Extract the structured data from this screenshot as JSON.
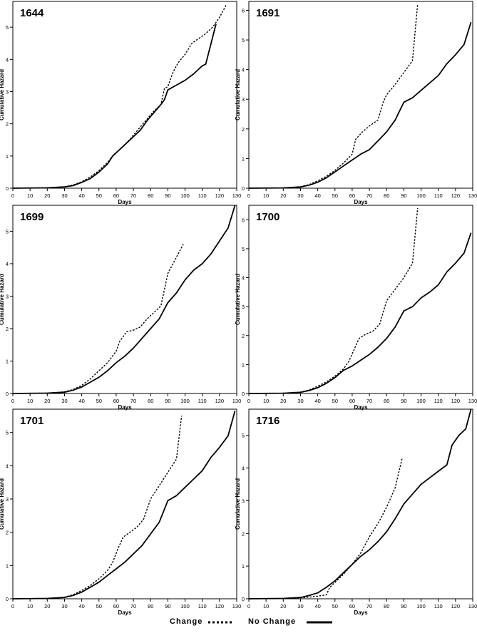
{
  "colors": {
    "line": "#000000",
    "background": "#ffffff"
  },
  "legend": {
    "dashed_label": "Change",
    "solid_label": "No Change"
  },
  "chart_data": [
    {
      "type": "line",
      "title": "1644",
      "xlabel": "Days",
      "ylabel": "Cumulative Hazard",
      "xlim": [
        0,
        130
      ],
      "ylim": [
        0,
        5.8
      ],
      "xticks": [
        0,
        10,
        20,
        30,
        40,
        50,
        60,
        70,
        80,
        90,
        100,
        110,
        120,
        130
      ],
      "yticks": [
        0,
        1,
        2,
        3,
        4,
        5
      ],
      "grid": false,
      "series": [
        {
          "name": "No Change",
          "style": "solid",
          "x": [
            0,
            20,
            30,
            35,
            40,
            45,
            50,
            55,
            58,
            62,
            66,
            70,
            74,
            78,
            82,
            86,
            88,
            90,
            95,
            100,
            105,
            110,
            112,
            118
          ],
          "y": [
            0,
            0.01,
            0.04,
            0.08,
            0.18,
            0.3,
            0.5,
            0.75,
            1.0,
            1.2,
            1.4,
            1.6,
            1.8,
            2.1,
            2.35,
            2.6,
            2.75,
            3.05,
            3.2,
            3.35,
            3.55,
            3.8,
            3.85,
            5.1
          ]
        },
        {
          "name": "Change",
          "style": "dashed",
          "x": [
            0,
            20,
            30,
            35,
            40,
            45,
            50,
            55,
            58,
            62,
            66,
            70,
            74,
            78,
            82,
            86,
            88,
            90,
            93,
            96,
            100,
            104,
            108,
            112,
            116,
            120,
            124
          ],
          "y": [
            0,
            0.01,
            0.04,
            0.1,
            0.2,
            0.35,
            0.55,
            0.8,
            1.0,
            1.2,
            1.4,
            1.65,
            1.9,
            2.15,
            2.4,
            2.6,
            3.1,
            3.15,
            3.6,
            3.9,
            4.15,
            4.5,
            4.65,
            4.8,
            5.0,
            5.3,
            5.7
          ]
        }
      ]
    },
    {
      "type": "line",
      "title": "1691",
      "xlabel": "Days",
      "ylabel": "Cumulative Hazard",
      "xlim": [
        0,
        130
      ],
      "ylim": [
        0,
        6.3
      ],
      "xticks": [
        0,
        10,
        20,
        30,
        40,
        50,
        60,
        70,
        80,
        90,
        100,
        110,
        120,
        130
      ],
      "yticks": [
        0,
        1,
        2,
        3,
        4,
        5,
        6
      ],
      "grid": false,
      "series": [
        {
          "name": "No Change",
          "style": "solid",
          "x": [
            0,
            20,
            30,
            35,
            40,
            45,
            50,
            55,
            60,
            65,
            70,
            75,
            80,
            85,
            90,
            95,
            100,
            105,
            110,
            115,
            120,
            125,
            129
          ],
          "y": [
            0,
            0.01,
            0.04,
            0.1,
            0.2,
            0.35,
            0.55,
            0.75,
            0.95,
            1.15,
            1.3,
            1.6,
            1.9,
            2.3,
            2.9,
            3.05,
            3.3,
            3.55,
            3.8,
            4.2,
            4.5,
            4.85,
            5.6
          ]
        },
        {
          "name": "Change",
          "style": "dashed",
          "x": [
            0,
            20,
            30,
            35,
            40,
            45,
            50,
            55,
            60,
            62,
            66,
            70,
            75,
            78,
            80,
            85,
            90,
            95,
            98
          ],
          "y": [
            0,
            0.01,
            0.05,
            0.12,
            0.25,
            0.4,
            0.6,
            0.85,
            1.15,
            1.65,
            1.9,
            2.1,
            2.3,
            2.9,
            3.15,
            3.5,
            3.9,
            4.3,
            6.2
          ]
        }
      ]
    },
    {
      "type": "line",
      "title": "1699",
      "xlabel": "Days",
      "ylabel": "Cumulative Hazard",
      "xlim": [
        0,
        130
      ],
      "ylim": [
        0,
        5.8
      ],
      "xticks": [
        0,
        10,
        20,
        30,
        40,
        50,
        60,
        70,
        80,
        90,
        100,
        110,
        120,
        130
      ],
      "yticks": [
        0,
        1,
        2,
        3,
        4,
        5
      ],
      "grid": false,
      "series": [
        {
          "name": "No Change",
          "style": "solid",
          "x": [
            0,
            20,
            30,
            35,
            40,
            45,
            50,
            55,
            60,
            65,
            70,
            75,
            80,
            85,
            90,
            95,
            100,
            105,
            110,
            115,
            120,
            125,
            129
          ],
          "y": [
            0,
            0.01,
            0.04,
            0.1,
            0.2,
            0.35,
            0.5,
            0.7,
            0.95,
            1.15,
            1.4,
            1.7,
            2.0,
            2.3,
            2.8,
            3.1,
            3.5,
            3.8,
            4.0,
            4.3,
            4.7,
            5.1,
            5.8
          ]
        },
        {
          "name": "Change",
          "style": "dashed",
          "x": [
            0,
            20,
            30,
            35,
            40,
            45,
            50,
            55,
            60,
            62,
            66,
            70,
            74,
            78,
            82,
            86,
            90,
            95,
            99
          ],
          "y": [
            0,
            0.01,
            0.05,
            0.12,
            0.25,
            0.45,
            0.7,
            0.95,
            1.3,
            1.6,
            1.9,
            1.95,
            2.05,
            2.3,
            2.5,
            2.7,
            3.7,
            4.2,
            4.6
          ]
        }
      ]
    },
    {
      "type": "line",
      "title": "1700",
      "xlabel": "Days",
      "ylabel": "Cumulative Hazard",
      "xlim": [
        0,
        130
      ],
      "ylim": [
        0,
        6.5
      ],
      "xticks": [
        0,
        10,
        20,
        30,
        40,
        50,
        60,
        70,
        80,
        90,
        100,
        110,
        120,
        130
      ],
      "yticks": [
        0,
        1,
        2,
        3,
        4,
        5,
        6
      ],
      "grid": false,
      "series": [
        {
          "name": "No Change",
          "style": "solid",
          "x": [
            0,
            20,
            30,
            35,
            40,
            45,
            50,
            55,
            60,
            65,
            70,
            75,
            80,
            85,
            90,
            95,
            100,
            105,
            110,
            115,
            120,
            125,
            129
          ],
          "y": [
            0,
            0.01,
            0.04,
            0.1,
            0.2,
            0.35,
            0.55,
            0.8,
            0.95,
            1.15,
            1.35,
            1.6,
            1.9,
            2.3,
            2.85,
            3.0,
            3.3,
            3.5,
            3.75,
            4.2,
            4.5,
            4.85,
            5.55
          ]
        },
        {
          "name": "Change",
          "style": "dashed",
          "x": [
            0,
            20,
            30,
            35,
            40,
            45,
            50,
            55,
            58,
            61,
            64,
            68,
            72,
            76,
            80,
            85,
            90,
            95,
            98
          ],
          "y": [
            0,
            0.01,
            0.05,
            0.12,
            0.25,
            0.4,
            0.6,
            0.85,
            1.1,
            1.5,
            1.9,
            2.05,
            2.15,
            2.4,
            3.2,
            3.6,
            4.0,
            4.5,
            6.4
          ]
        }
      ]
    },
    {
      "type": "line",
      "title": "1701",
      "xlabel": "Days",
      "ylabel": "Cumulative Hazard",
      "xlim": [
        0,
        130
      ],
      "ylim": [
        0,
        5.7
      ],
      "xticks": [
        0,
        10,
        20,
        30,
        40,
        50,
        60,
        70,
        80,
        90,
        100,
        110,
        120,
        130
      ],
      "yticks": [
        0,
        1,
        2,
        3,
        4,
        5
      ],
      "grid": false,
      "series": [
        {
          "name": "No Change",
          "style": "solid",
          "x": [
            0,
            20,
            30,
            35,
            40,
            45,
            50,
            55,
            60,
            65,
            70,
            75,
            80,
            85,
            90,
            95,
            100,
            105,
            110,
            115,
            120,
            125,
            129
          ],
          "y": [
            0,
            0.01,
            0.04,
            0.1,
            0.2,
            0.35,
            0.5,
            0.7,
            0.9,
            1.1,
            1.35,
            1.6,
            1.95,
            2.3,
            2.95,
            3.1,
            3.35,
            3.6,
            3.85,
            4.25,
            4.55,
            4.9,
            5.65
          ]
        },
        {
          "name": "Change",
          "style": "dashed",
          "x": [
            0,
            20,
            30,
            35,
            40,
            45,
            50,
            55,
            58,
            61,
            64,
            68,
            72,
            76,
            80,
            85,
            90,
            95,
            98
          ],
          "y": [
            0,
            0.01,
            0.05,
            0.12,
            0.25,
            0.4,
            0.6,
            0.85,
            1.1,
            1.5,
            1.85,
            2.0,
            2.15,
            2.4,
            3.0,
            3.4,
            3.8,
            4.2,
            5.5
          ]
        }
      ]
    },
    {
      "type": "line",
      "title": "1716",
      "xlabel": "Days",
      "ylabel": "Cumulative Hazard",
      "xlim": [
        0,
        130
      ],
      "ylim": [
        0,
        5.8
      ],
      "xticks": [
        0,
        10,
        20,
        30,
        40,
        50,
        60,
        70,
        80,
        90,
        100,
        110,
        120,
        130
      ],
      "yticks": [
        0,
        1,
        2,
        3,
        4,
        5
      ],
      "grid": false,
      "series": [
        {
          "name": "No Change",
          "style": "solid",
          "x": [
            0,
            20,
            30,
            35,
            40,
            45,
            50,
            55,
            60,
            65,
            70,
            75,
            80,
            85,
            90,
            95,
            100,
            105,
            110,
            115,
            118,
            122,
            126,
            129
          ],
          "y": [
            0,
            0.01,
            0.04,
            0.1,
            0.18,
            0.35,
            0.55,
            0.8,
            1.05,
            1.3,
            1.5,
            1.75,
            2.05,
            2.45,
            2.9,
            3.2,
            3.5,
            3.7,
            3.9,
            4.1,
            4.7,
            5.0,
            5.2,
            5.8
          ]
        },
        {
          "name": "Change",
          "style": "dashed",
          "x": [
            0,
            20,
            30,
            35,
            40,
            45,
            47,
            50,
            55,
            60,
            65,
            70,
            75,
            80,
            85,
            89
          ],
          "y": [
            0,
            0.01,
            0.03,
            0.05,
            0.08,
            0.12,
            0.35,
            0.5,
            0.75,
            1.05,
            1.4,
            1.9,
            2.3,
            2.8,
            3.4,
            4.3
          ]
        }
      ]
    }
  ]
}
